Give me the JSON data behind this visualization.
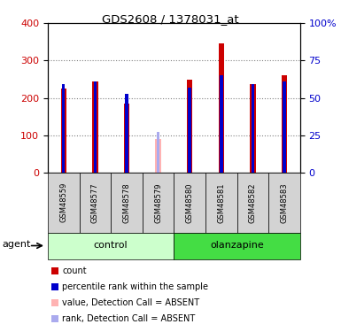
{
  "title": "GDS2608 / 1378031_at",
  "samples": [
    "GSM48559",
    "GSM48577",
    "GSM48578",
    "GSM48579",
    "GSM48580",
    "GSM48581",
    "GSM48582",
    "GSM48583"
  ],
  "count_values": [
    225,
    245,
    185,
    90,
    250,
    345,
    237,
    260
  ],
  "rank_values": [
    59,
    61,
    53,
    27,
    57,
    65,
    59,
    61
  ],
  "absent_flags": [
    false,
    false,
    false,
    true,
    false,
    false,
    false,
    false
  ],
  "bar_color_present": "#cc0000",
  "bar_color_absent": "#ffb3b3",
  "rank_color_present": "#0000cc",
  "rank_color_absent": "#aaaaee",
  "left_ylim": [
    0,
    400
  ],
  "right_ylim": [
    0,
    100
  ],
  "left_yticks": [
    0,
    100,
    200,
    300,
    400
  ],
  "right_yticks": [
    0,
    25,
    50,
    75,
    100
  ],
  "right_yticklabels": [
    "0",
    "25",
    "50",
    "75",
    "100%"
  ],
  "groups": [
    {
      "label": "control",
      "start": 0,
      "end": 3,
      "color": "#ccffcc"
    },
    {
      "label": "olanzapine",
      "start": 4,
      "end": 7,
      "color": "#44dd44"
    }
  ],
  "agent_label": "agent",
  "bar_width": 0.18,
  "rank_bar_width": 0.1,
  "legend_items": [
    {
      "color": "#cc0000",
      "label": "count"
    },
    {
      "color": "#0000cc",
      "label": "percentile rank within the sample"
    },
    {
      "color": "#ffb3b3",
      "label": "value, Detection Call = ABSENT"
    },
    {
      "color": "#aaaaee",
      "label": "rank, Detection Call = ABSENT"
    }
  ]
}
